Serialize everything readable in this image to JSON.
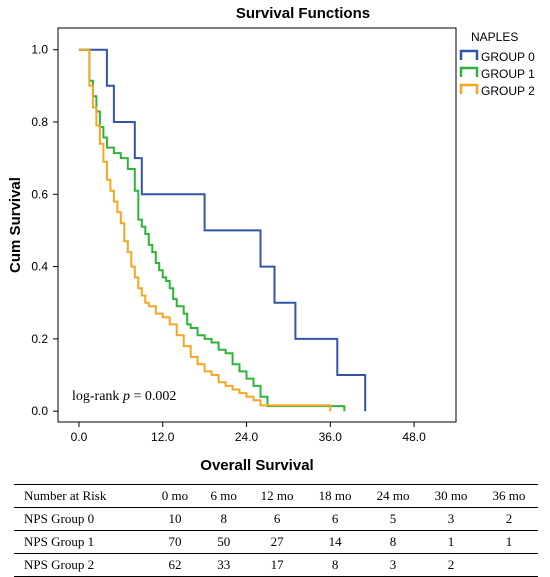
{
  "chart_data": {
    "type": "line",
    "step": true,
    "title": "Survival Functions",
    "xlabel": "Overall Survival",
    "ylabel": "Cum Survival",
    "xlim": [
      -3,
      54
    ],
    "ylim": [
      -0.03,
      1.06
    ],
    "xticks": [
      0,
      12,
      24,
      36,
      48
    ],
    "xtick_labels": [
      "0.0",
      "12.0",
      "24.0",
      "36.0",
      "48.0"
    ],
    "yticks": [
      0,
      0.2,
      0.4,
      0.6,
      0.8,
      1.0
    ],
    "ytick_labels": [
      "0.0",
      "0.2",
      "0.4",
      "0.6",
      "0.8",
      "1.0"
    ],
    "grid": false,
    "legend": {
      "title": "NAPLES",
      "position": "top-right"
    },
    "annotation": {
      "prefix": "log-rank ",
      "var": "p",
      "suffix": " = 0.002"
    },
    "series": [
      {
        "name": "GROUP 0",
        "color": "#3355a5",
        "x": [
          0,
          4,
          5,
          8,
          9,
          18,
          26,
          28,
          31,
          37,
          41
        ],
        "y": [
          1.0,
          0.9,
          0.8,
          0.7,
          0.6,
          0.5,
          0.4,
          0.3,
          0.2,
          0.1,
          0.0
        ]
      },
      {
        "name": "GROUP 1",
        "color": "#2fb43b",
        "x": [
          0,
          1.5,
          2.0,
          2.5,
          3.0,
          3.5,
          4.0,
          5.0,
          6.0,
          7.0,
          8.0,
          8.5,
          9.0,
          9.5,
          10.0,
          10.5,
          11.0,
          11.5,
          12.0,
          12.5,
          13.0,
          13.5,
          14.0,
          15.0,
          15.5,
          16.0,
          17.0,
          18.0,
          19.0,
          20.0,
          21.0,
          22.0,
          23.0,
          24.0,
          25.0,
          26.0,
          27.0,
          33.0,
          38.0
        ],
        "y": [
          1.0,
          0.914,
          0.871,
          0.829,
          0.786,
          0.757,
          0.729,
          0.714,
          0.7,
          0.67,
          0.61,
          0.53,
          0.51,
          0.49,
          0.46,
          0.44,
          0.41,
          0.39,
          0.37,
          0.36,
          0.34,
          0.31,
          0.29,
          0.27,
          0.24,
          0.23,
          0.21,
          0.2,
          0.19,
          0.17,
          0.16,
          0.13,
          0.11,
          0.09,
          0.07,
          0.04,
          0.014,
          0.014,
          0.0
        ]
      },
      {
        "name": "GROUP 2",
        "color": "#f5a623",
        "x": [
          0,
          1.5,
          2.0,
          2.5,
          3.0,
          3.5,
          4.0,
          4.5,
          5.0,
          5.5,
          6.0,
          6.5,
          7.0,
          7.5,
          8.0,
          8.5,
          9.0,
          9.5,
          10.0,
          11.0,
          12.0,
          13.0,
          14.0,
          15.0,
          16.0,
          17.0,
          18.0,
          19.0,
          20.0,
          21.0,
          22.0,
          23.0,
          24.0,
          25.0,
          26.0,
          30.0,
          36.0
        ],
        "y": [
          1.0,
          0.9,
          0.84,
          0.79,
          0.74,
          0.69,
          0.64,
          0.61,
          0.58,
          0.55,
          0.52,
          0.47,
          0.44,
          0.4,
          0.37,
          0.34,
          0.32,
          0.3,
          0.29,
          0.27,
          0.26,
          0.24,
          0.21,
          0.18,
          0.15,
          0.13,
          0.11,
          0.1,
          0.08,
          0.07,
          0.06,
          0.05,
          0.04,
          0.03,
          0.016,
          0.016,
          0.0
        ]
      }
    ]
  },
  "risk_table": {
    "headers": [
      "Number at Risk",
      "0 mo",
      "6 mo",
      "12 mo",
      "18 mo",
      "24 mo",
      "30 mo",
      "36 mo"
    ],
    "rows": [
      {
        "label": "NPS Group 0",
        "values": [
          "10",
          "8",
          "6",
          "6",
          "5",
          "3",
          "2"
        ]
      },
      {
        "label": "NPS Group 1",
        "values": [
          "70",
          "50",
          "27",
          "14",
          "8",
          "1",
          "1"
        ]
      },
      {
        "label": "NPS Group 2",
        "values": [
          "62",
          "33",
          "17",
          "8",
          "3",
          "2",
          ""
        ]
      }
    ]
  }
}
